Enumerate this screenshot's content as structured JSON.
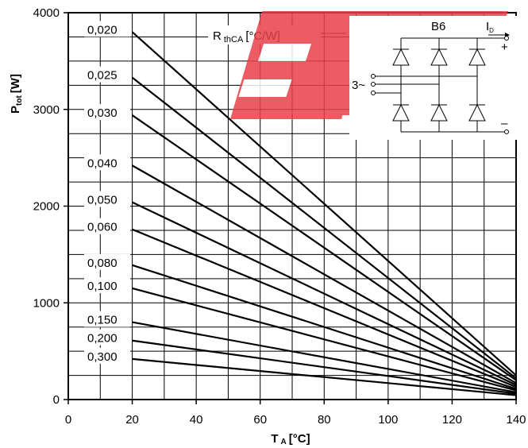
{
  "chart_data": {
    "type": "line",
    "xlabel": "T",
    "xlabel_sub": "A",
    "xlabel_unit": "[°C]",
    "ylabel": "P",
    "ylabel_sub": "tot",
    "ylabel_unit": "[W]",
    "xlim": [
      0,
      140
    ],
    "ylim": [
      0,
      4000
    ],
    "xticks": [
      0,
      20,
      40,
      60,
      80,
      100,
      120,
      140
    ],
    "yticks": [
      0,
      1000,
      2000,
      3000,
      4000
    ],
    "grid": true,
    "annotation": {
      "main": "R",
      "sub": "thCA",
      "unit": "[°C/W]"
    },
    "series": [
      {
        "name": "0,020",
        "x": [
          20,
          140
        ],
        "y": [
          3800,
          250
        ]
      },
      {
        "name": "0,025",
        "x": [
          20,
          140
        ],
        "y": [
          3330,
          220
        ]
      },
      {
        "name": "0,030",
        "x": [
          20,
          140
        ],
        "y": [
          2940,
          200
        ]
      },
      {
        "name": "0,040",
        "x": [
          20,
          140
        ],
        "y": [
          2420,
          170
        ]
      },
      {
        "name": "0,050",
        "x": [
          20,
          140
        ],
        "y": [
          2040,
          150
        ]
      },
      {
        "name": "0,060",
        "x": [
          20,
          140
        ],
        "y": [
          1760,
          130
        ]
      },
      {
        "name": "0,080",
        "x": [
          20,
          140
        ],
        "y": [
          1390,
          110
        ]
      },
      {
        "name": "0,100",
        "x": [
          20,
          140
        ],
        "y": [
          1150,
          95
        ]
      },
      {
        "name": "0,150",
        "x": [
          20,
          140
        ],
        "y": [
          800,
          75
        ]
      },
      {
        "name": "0,200",
        "x": [
          20,
          140
        ],
        "y": [
          610,
          60
        ]
      },
      {
        "name": "0,300",
        "x": [
          20,
          140
        ],
        "y": [
          420,
          45
        ]
      }
    ]
  },
  "schematic": {
    "name": "B6",
    "input_label": "3~",
    "output_label": "I",
    "output_sub": "D",
    "plus": "+",
    "minus": "–"
  }
}
